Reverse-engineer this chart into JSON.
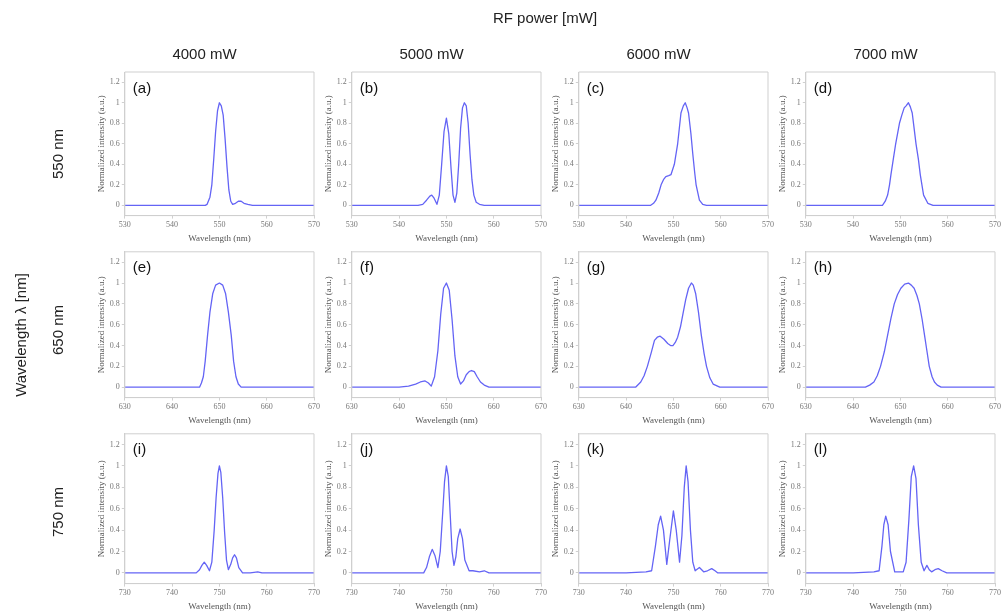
{
  "chart_data": [
    {
      "type": "line",
      "title": "4000 mW",
      "xlabel": "Wavelength (nm)",
      "ylabel": "Normalized intensity (a.u.)",
      "annotations": [
        "(a)",
        "550 nm",
        "RF power [mW]",
        "Wavelength λ [nm]"
      ],
      "xlim": [
        530,
        570
      ],
      "xticks": [
        530,
        540,
        550,
        560,
        570
      ],
      "ylim": [
        -0.1,
        1.3
      ],
      "yticks": [
        0,
        0.2,
        0.4,
        0.6,
        0.8,
        1,
        1.2
      ],
      "marker": "none",
      "line_style": "solid",
      "series": [
        {
          "color": "#6464f5",
          "x": [
            530,
            535,
            540,
            545,
            547,
            547.4,
            548,
            548.4,
            548.8,
            549.2,
            549.6,
            550,
            550.4,
            550.8,
            551.2,
            551.6,
            552,
            552.4,
            552.8,
            553.4,
            554,
            554.6,
            555.2,
            556,
            557,
            560,
            565,
            570
          ],
          "values": [
            0,
            0,
            0,
            0,
            0,
            0.01,
            0.08,
            0.2,
            0.45,
            0.72,
            0.92,
            1,
            0.97,
            0.88,
            0.65,
            0.38,
            0.15,
            0.04,
            0.01,
            0.02,
            0.04,
            0.04,
            0.02,
            0.01,
            0,
            0,
            0,
            0
          ]
        }
      ]
    },
    {
      "type": "line",
      "title": "5000 mW",
      "xlabel": "Wavelength (nm)",
      "ylabel": "Normalized intensity (a.u.)",
      "annotations": [
        "(b)"
      ],
      "xlim": [
        530,
        570
      ],
      "xticks": [
        530,
        540,
        550,
        560,
        570
      ],
      "ylim": [
        -0.1,
        1.3
      ],
      "yticks": [
        0,
        0.2,
        0.4,
        0.6,
        0.8,
        1,
        1.2
      ],
      "marker": "none",
      "line_style": "solid",
      "series": [
        {
          "color": "#6464f5",
          "x": [
            530,
            535,
            540,
            544,
            545,
            545.8,
            546.5,
            546.9,
            547.4,
            548,
            548.5,
            549,
            549.5,
            550,
            550.5,
            551,
            551.4,
            551.8,
            552.2,
            552.6,
            553,
            553.4,
            553.8,
            554.2,
            554.6,
            555,
            555.4,
            555.8,
            556.3,
            557,
            558,
            560,
            565,
            570
          ],
          "values": [
            0,
            0,
            0,
            0,
            0.01,
            0.05,
            0.09,
            0.1,
            0.07,
            0.01,
            0.1,
            0.4,
            0.72,
            0.85,
            0.7,
            0.35,
            0.1,
            0.03,
            0.12,
            0.4,
            0.75,
            0.95,
            1,
            0.97,
            0.8,
            0.5,
            0.25,
            0.1,
            0.03,
            0.01,
            0,
            0,
            0,
            0
          ]
        }
      ]
    },
    {
      "type": "line",
      "title": "6000 mW",
      "xlabel": "Wavelength (nm)",
      "ylabel": "Normalized intensity (a.u.)",
      "annotations": [
        "(c)"
      ],
      "xlim": [
        530,
        570
      ],
      "xticks": [
        530,
        540,
        550,
        560,
        570
      ],
      "ylim": [
        -0.1,
        1.3
      ],
      "yticks": [
        0,
        0.2,
        0.4,
        0.6,
        0.8,
        1,
        1.2
      ],
      "marker": "none",
      "line_style": "solid",
      "series": [
        {
          "color": "#6464f5",
          "x": [
            530,
            535,
            540,
            545.2,
            545.8,
            546.3,
            546.9,
            547.4,
            547.9,
            548.4,
            549,
            549.5,
            550.2,
            550.9,
            551.6,
            552.1,
            552.5,
            552.9,
            553.2,
            553.7,
            554.1,
            554.5,
            554.8,
            555.5,
            556.2,
            557,
            560,
            565,
            570
          ],
          "values": [
            0,
            0,
            0,
            0,
            0.02,
            0.05,
            0.12,
            0.2,
            0.25,
            0.28,
            0.29,
            0.3,
            0.4,
            0.6,
            0.9,
            0.97,
            1,
            0.95,
            0.9,
            0.7,
            0.5,
            0.32,
            0.2,
            0.05,
            0.01,
            0,
            0,
            0,
            0
          ]
        }
      ]
    },
    {
      "type": "line",
      "title": "7000 mW",
      "xlabel": "Wavelength (nm)",
      "ylabel": "Normalized intensity (a.u.)",
      "annotations": [
        "(d)"
      ],
      "xlim": [
        530,
        570
      ],
      "xticks": [
        530,
        540,
        550,
        560,
        570
      ],
      "ylim": [
        -0.1,
        1.3
      ],
      "yticks": [
        0,
        0.2,
        0.4,
        0.6,
        0.8,
        1,
        1.2
      ],
      "marker": "none",
      "line_style": "solid",
      "series": [
        {
          "color": "#6464f5",
          "x": [
            530,
            535,
            540,
            545,
            546.2,
            546.8,
            547.3,
            547.7,
            548,
            548.5,
            549,
            549.4,
            549.8,
            550.3,
            550.8,
            551.2,
            551.7,
            552.1,
            552.5,
            552.9,
            553.3,
            553.8,
            554.2,
            554.9,
            555.8,
            556.9,
            560,
            565,
            570
          ],
          "values": [
            0,
            0,
            0,
            0,
            0,
            0.04,
            0.1,
            0.2,
            0.3,
            0.45,
            0.6,
            0.7,
            0.8,
            0.88,
            0.95,
            0.97,
            1,
            0.96,
            0.9,
            0.75,
            0.6,
            0.45,
            0.3,
            0.1,
            0.02,
            0,
            0,
            0,
            0
          ]
        }
      ]
    },
    {
      "type": "line",
      "xlabel": "Wavelength (nm)",
      "ylabel": "Normalized intensity (a.u.)",
      "annotations": [
        "(e)",
        "650 nm"
      ],
      "xlim": [
        630,
        670
      ],
      "xticks": [
        630,
        640,
        650,
        660,
        670
      ],
      "ylim": [
        -0.1,
        1.3
      ],
      "yticks": [
        0,
        0.2,
        0.4,
        0.6,
        0.8,
        1,
        1.2
      ],
      "marker": "none",
      "line_style": "solid",
      "series": [
        {
          "color": "#6464f5",
          "x": [
            630,
            635,
            640,
            645,
            645.8,
            646.2,
            646.6,
            647,
            647.5,
            648,
            648.6,
            649.2,
            650,
            650.7,
            651.3,
            651.9,
            652.5,
            653,
            653.5,
            654,
            654.6,
            656,
            660,
            665,
            670
          ],
          "values": [
            0,
            0,
            0,
            0,
            0,
            0.04,
            0.1,
            0.25,
            0.5,
            0.72,
            0.9,
            0.98,
            1,
            0.98,
            0.9,
            0.72,
            0.5,
            0.25,
            0.1,
            0.03,
            0,
            0,
            0,
            0,
            0
          ]
        }
      ]
    },
    {
      "type": "line",
      "xlabel": "Wavelength (nm)",
      "ylabel": "Normalized intensity (a.u.)",
      "annotations": [
        "(f)"
      ],
      "xlim": [
        630,
        670
      ],
      "xticks": [
        630,
        640,
        650,
        660,
        670
      ],
      "ylim": [
        -0.1,
        1.3
      ],
      "yticks": [
        0,
        0.2,
        0.4,
        0.6,
        0.8,
        1,
        1.2
      ],
      "marker": "none",
      "line_style": "solid",
      "series": [
        {
          "color": "#6464f5",
          "x": [
            630,
            635,
            640,
            642,
            643.5,
            644.5,
            645.5,
            646.2,
            646.8,
            647.5,
            648.2,
            648.8,
            649.4,
            650,
            650.6,
            651.2,
            651.8,
            652.4,
            653,
            653.6,
            654.2,
            654.8,
            655.3,
            655.9,
            656.5,
            657.2,
            658,
            659,
            662,
            665,
            670
          ],
          "values": [
            0,
            0,
            0,
            0.01,
            0.03,
            0.05,
            0.06,
            0.04,
            0.01,
            0.1,
            0.35,
            0.7,
            0.95,
            1,
            0.93,
            0.65,
            0.3,
            0.1,
            0.03,
            0.06,
            0.12,
            0.15,
            0.16,
            0.15,
            0.1,
            0.05,
            0.02,
            0,
            0,
            0,
            0
          ]
        }
      ]
    },
    {
      "type": "line",
      "xlabel": "Wavelength (nm)",
      "ylabel": "Normalized intensity (a.u.)",
      "annotations": [
        "(g)"
      ],
      "xlim": [
        630,
        670
      ],
      "xticks": [
        630,
        640,
        650,
        660,
        670
      ],
      "ylim": [
        -0.1,
        1.3
      ],
      "yticks": [
        0,
        0.2,
        0.4,
        0.6,
        0.8,
        1,
        1.2
      ],
      "marker": "none",
      "line_style": "solid",
      "series": [
        {
          "color": "#6464f5",
          "x": [
            630,
            635,
            640,
            642,
            643.1,
            643.8,
            644.5,
            645.3,
            646,
            646.6,
            647.2,
            648,
            648.8,
            649.4,
            649.9,
            650.4,
            650.9,
            651.5,
            652,
            652.6,
            653.2,
            653.8,
            654.2,
            654.7,
            655.3,
            655.9,
            656.5,
            657,
            657.7,
            658.4,
            659.8,
            662,
            665,
            670
          ],
          "values": [
            0,
            0,
            0,
            0,
            0.05,
            0.11,
            0.2,
            0.33,
            0.45,
            0.48,
            0.49,
            0.46,
            0.42,
            0.4,
            0.4,
            0.43,
            0.48,
            0.58,
            0.7,
            0.84,
            0.95,
            1,
            0.98,
            0.9,
            0.72,
            0.5,
            0.32,
            0.2,
            0.09,
            0.03,
            0,
            0,
            0,
            0
          ]
        }
      ]
    },
    {
      "type": "line",
      "xlabel": "Wavelength (nm)",
      "ylabel": "Normalized intensity (a.u.)",
      "annotations": [
        "(h)"
      ],
      "xlim": [
        630,
        670
      ],
      "xticks": [
        630,
        640,
        650,
        660,
        670
      ],
      "ylim": [
        -0.1,
        1.3
      ],
      "yticks": [
        0,
        0.2,
        0.4,
        0.6,
        0.8,
        1,
        1.2
      ],
      "marker": "none",
      "line_style": "solid",
      "series": [
        {
          "color": "#6464f5",
          "x": [
            630,
            635,
            640,
            642.6,
            643.5,
            644.4,
            645.1,
            645.8,
            646.6,
            647.3,
            648,
            648.7,
            649.4,
            650.1,
            650.9,
            651.7,
            652.3,
            652.9,
            653.5,
            654,
            654.6,
            655.1,
            655.6,
            656.1,
            656.7,
            657.2,
            657.8,
            658.6,
            660,
            665,
            670
          ],
          "values": [
            0,
            0,
            0,
            0,
            0.02,
            0.05,
            0.11,
            0.2,
            0.34,
            0.5,
            0.66,
            0.8,
            0.89,
            0.95,
            0.99,
            1,
            0.98,
            0.95,
            0.88,
            0.8,
            0.65,
            0.5,
            0.35,
            0.2,
            0.1,
            0.05,
            0.02,
            0,
            0,
            0,
            0
          ]
        }
      ]
    },
    {
      "type": "line",
      "xlabel": "Wavelength (nm)",
      "ylabel": "Normalized intensity (a.u.)",
      "annotations": [
        "(i)",
        "750 nm"
      ],
      "xlim": [
        730,
        770
      ],
      "xticks": [
        730,
        740,
        750,
        760,
        770
      ],
      "ylim": [
        -0.1,
        1.3
      ],
      "yticks": [
        0,
        0.2,
        0.4,
        0.6,
        0.8,
        1,
        1.2
      ],
      "marker": "none",
      "line_style": "solid",
      "series": [
        {
          "color": "#6464f5",
          "x": [
            730,
            735,
            740,
            745.1,
            745.8,
            746.3,
            746.8,
            747.3,
            747.9,
            748.4,
            748.9,
            749.3,
            749.7,
            750,
            750.3,
            750.7,
            751.1,
            751.5,
            751.9,
            752.4,
            752.8,
            753.2,
            753.6,
            754.1,
            754.9,
            756.5,
            758.1,
            759,
            762,
            765,
            770
          ],
          "values": [
            0,
            0,
            0,
            0,
            0.03,
            0.07,
            0.1,
            0.07,
            0.02,
            0.1,
            0.4,
            0.7,
            0.93,
            1,
            0.94,
            0.7,
            0.38,
            0.12,
            0.03,
            0.08,
            0.14,
            0.17,
            0.14,
            0.05,
            0,
            0,
            0.01,
            0,
            0,
            0,
            0
          ]
        }
      ]
    },
    {
      "type": "line",
      "xlabel": "Wavelength (nm)",
      "ylabel": "Normalized intensity (a.u.)",
      "annotations": [
        "(j)"
      ],
      "xlim": [
        730,
        770
      ],
      "xticks": [
        730,
        740,
        750,
        760,
        770
      ],
      "ylim": [
        -0.1,
        1.3
      ],
      "yticks": [
        0,
        0.2,
        0.4,
        0.6,
        0.8,
        1,
        1.2
      ],
      "marker": "none",
      "line_style": "solid",
      "series": [
        {
          "color": "#6464f5",
          "x": [
            730,
            735,
            740,
            745.2,
            745.8,
            746.4,
            747,
            747.6,
            748.2,
            748.7,
            749.2,
            749.6,
            750,
            750.4,
            750.8,
            751.2,
            751.6,
            752,
            752.4,
            752.9,
            753.4,
            753.9,
            754.8,
            755.6,
            757,
            758,
            759,
            762,
            765,
            770
          ],
          "values": [
            0,
            0,
            0,
            0,
            0.05,
            0.15,
            0.22,
            0.16,
            0.05,
            0.2,
            0.55,
            0.85,
            1,
            0.9,
            0.55,
            0.2,
            0.07,
            0.15,
            0.32,
            0.41,
            0.32,
            0.12,
            0.02,
            0.02,
            0.01,
            0.02,
            0,
            0,
            0,
            0
          ]
        }
      ]
    },
    {
      "type": "line",
      "xlabel": "Wavelength (nm)",
      "ylabel": "Normalized intensity (a.u.)",
      "annotations": [
        "(k)"
      ],
      "xlim": [
        730,
        770
      ],
      "xticks": [
        730,
        740,
        750,
        760,
        770
      ],
      "ylim": [
        -0.1,
        1.3
      ],
      "yticks": [
        0,
        0.2,
        0.4,
        0.6,
        0.8,
        1,
        1.2
      ],
      "marker": "none",
      "line_style": "solid",
      "series": [
        {
          "color": "#6464f5",
          "x": [
            730,
            735,
            740,
            744.2,
            745.4,
            746.2,
            746.8,
            747.3,
            747.9,
            748.6,
            749.2,
            750,
            750.6,
            751.3,
            751.8,
            752.3,
            752.7,
            753.1,
            753.6,
            754.1,
            754.6,
            755.5,
            756.4,
            757.2,
            758.1,
            758.8,
            759.4,
            762,
            765,
            770
          ],
          "values": [
            0,
            0,
            0,
            0.01,
            0.02,
            0.25,
            0.45,
            0.53,
            0.4,
            0.08,
            0.3,
            0.58,
            0.4,
            0.1,
            0.35,
            0.8,
            1,
            0.85,
            0.4,
            0.1,
            0.02,
            0.05,
            0.01,
            0.02,
            0.04,
            0.02,
            0,
            0,
            0,
            0
          ]
        }
      ]
    },
    {
      "type": "line",
      "xlabel": "Wavelength (nm)",
      "ylabel": "Normalized intensity (a.u.)",
      "annotations": [
        "(l)"
      ],
      "xlim": [
        730,
        770
      ],
      "xticks": [
        730,
        740,
        750,
        760,
        770
      ],
      "ylim": [
        -0.1,
        1.3
      ],
      "yticks": [
        0,
        0.2,
        0.4,
        0.6,
        0.8,
        1,
        1.2
      ],
      "marker": "none",
      "line_style": "solid",
      "series": [
        {
          "color": "#6464f5",
          "x": [
            730,
            735,
            740,
            744.4,
            745.5,
            746.1,
            746.5,
            746.9,
            747.4,
            747.9,
            748.8,
            749.6,
            750.6,
            751.2,
            751.8,
            752.3,
            752.8,
            753.3,
            753.8,
            754.4,
            755,
            755.6,
            756.1,
            756.6,
            757.3,
            758,
            758.8,
            759.8,
            762,
            765,
            770
          ],
          "values": [
            0,
            0,
            0,
            0.01,
            0.02,
            0.25,
            0.45,
            0.53,
            0.45,
            0.2,
            0.01,
            0.01,
            0.01,
            0.1,
            0.5,
            0.9,
            1,
            0.88,
            0.45,
            0.1,
            0.02,
            0.07,
            0.03,
            0.01,
            0.03,
            0.04,
            0.02,
            0,
            0,
            0,
            0
          ]
        }
      ]
    }
  ]
}
